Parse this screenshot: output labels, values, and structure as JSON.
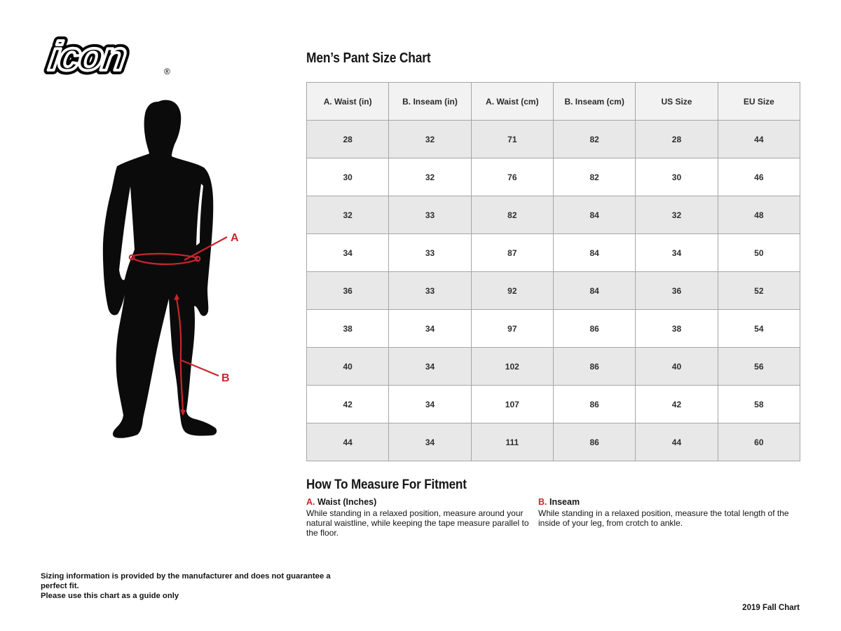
{
  "logo": {
    "text": "icon",
    "registered": "®"
  },
  "title": "Men’s Pant Size Chart",
  "table": {
    "headers": [
      "A. Waist (in)",
      "B. Inseam (in)",
      "A. Waist (cm)",
      "B. Inseam (cm)",
      "US Size",
      "EU Size"
    ],
    "rows": [
      [
        "28",
        "32",
        "71",
        "82",
        "28",
        "44"
      ],
      [
        "30",
        "32",
        "76",
        "82",
        "30",
        "46"
      ],
      [
        "32",
        "33",
        "82",
        "84",
        "32",
        "48"
      ],
      [
        "34",
        "33",
        "87",
        "84",
        "34",
        "50"
      ],
      [
        "36",
        "33",
        "92",
        "84",
        "36",
        "52"
      ],
      [
        "38",
        "34",
        "97",
        "86",
        "38",
        "54"
      ],
      [
        "40",
        "34",
        "102",
        "86",
        "40",
        "56"
      ],
      [
        "42",
        "34",
        "107",
        "86",
        "42",
        "58"
      ],
      [
        "44",
        "34",
        "111",
        "86",
        "44",
        "60"
      ]
    ]
  },
  "figure": {
    "label_a": "A",
    "label_b": "B"
  },
  "measure": {
    "heading": "How To Measure For Fitment",
    "items": [
      {
        "letter": "A.",
        "label": "Waist (Inches)",
        "text": "While standing in a relaxed position, measure around your natural waistline, while keeping the tape measure parallel to the floor."
      },
      {
        "letter": "B.",
        "label": "Inseam",
        "text": "While standing in a relaxed position, measure the total length of the inside of your leg, from crotch to ankle."
      }
    ]
  },
  "footer": {
    "disclaimer_line1": "Sizing information is provided by the manufacturer and does not guarantee a perfect fit.",
    "disclaimer_line2": "Please use this chart as a guide only",
    "chart_version": "2019 Fall Chart"
  },
  "colors": {
    "accent_red": "#c9252d",
    "silhouette_black": "#0b0b0b",
    "table_header_bg": "#f2f2f2",
    "table_row_gray": "#e8e8e8",
    "table_border": "#a6a6a6"
  }
}
